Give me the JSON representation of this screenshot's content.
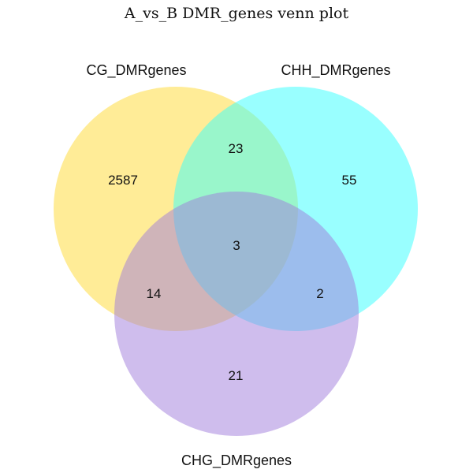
{
  "title": "A_vs_B DMR_genes venn plot",
  "sets": [
    {
      "key": "cg",
      "label": "CG_DMRgenes",
      "color": "#FFD92F"
    },
    {
      "key": "chh",
      "label": "CHH_DMRgenes",
      "color": "#33FFFF"
    },
    {
      "key": "chg",
      "label": "CHG_DMRgenes",
      "color": "#A07BDB"
    }
  ],
  "regions": {
    "cg_only": "2587",
    "chh_only": "55",
    "chg_only": "21",
    "cg_chh": "23",
    "cg_chg": "14",
    "chh_chg": "2",
    "all": "3"
  }
}
